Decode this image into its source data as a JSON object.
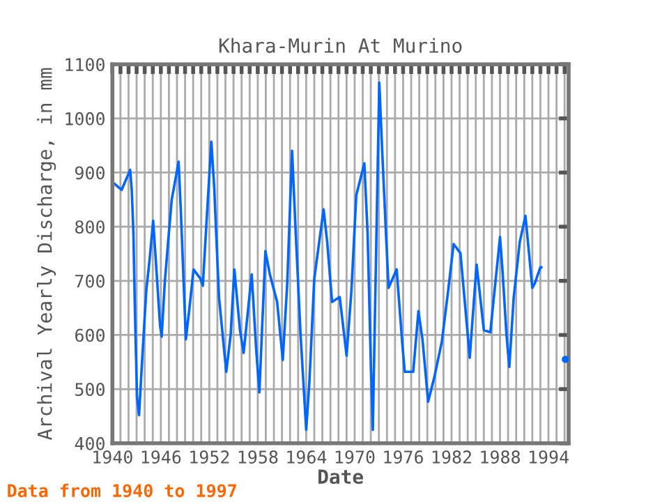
{
  "chart_data": {
    "type": "line",
    "title": "Khara-Murin At Murino",
    "xlabel": "Date",
    "ylabel": "Archival Yearly Discharge, in mm",
    "annotations": [
      "Data from 1940 to 1997"
    ],
    "series": [
      {
        "color": "#0066ff",
        "x": [
          1940.2,
          1941.15,
          1942.2,
          1942.4,
          1942.6,
          1942.8,
          1943.05,
          1943.3,
          1943.7,
          1944.2,
          1944.6,
          1945.05,
          1945.3,
          1945.9,
          1946.1,
          1946.5,
          1946.95,
          1947.35,
          1948.2,
          1948.5,
          1949.1,
          1949.5,
          1950.05,
          1950.9,
          1951.2,
          1951.65,
          1952.25,
          1952.6,
          1953.2,
          1954.1,
          1954.65,
          1955.1,
          1955.8,
          1956.25,
          1957.25,
          1957.8,
          1958.2,
          1958.95,
          1959.5,
          1960.4,
          1961.1,
          1961.65,
          1962.25,
          1962.7,
          1963.3,
          1964.0,
          1964.4,
          1965.0,
          1966.15,
          1966.6,
          1967.2,
          1968.15,
          1969.0,
          1969.6,
          1970.2,
          1971.2,
          1971.6,
          1972.0,
          1972.25,
          1972.65,
          1973.05,
          1973.5,
          1973.9,
          1974.2,
          1975.2,
          1975.9,
          1976.2,
          1977.25,
          1977.9,
          1978.4,
          1979.1,
          1979.9,
          1980.8,
          1981.55,
          1982.25,
          1983.1,
          1983.95,
          1984.25,
          1985.1,
          1986.0,
          1986.8,
          1988.0,
          1988.3,
          1988.8,
          1989.15,
          1989.7,
          1990.45,
          1991.15,
          1992.0,
          1992.3,
          1993.0,
          1993.15
        ],
        "values": [
          880,
          868,
          905,
          867,
          789,
          639,
          485,
          452,
          558,
          683,
          738,
          811,
          755,
          618,
          597,
          700,
          781,
          850,
          920,
          820,
          592,
          644,
          721,
          704,
          691,
          807,
          957,
          875,
          670,
          532,
          601,
          721,
          609,
          567,
          712,
          575,
          494,
          755,
          712,
          661,
          554,
          695,
          940,
          789,
          601,
          425,
          515,
          704,
          832,
          772,
          661,
          670,
          562,
          682,
          858,
          917,
          789,
          549,
          425,
          747,
          1066,
          910,
          781,
          687,
          721,
          584,
          532,
          532,
          644,
          592,
          477,
          524,
          588,
          678,
          768,
          751,
          609,
          558,
          730,
          609,
          605,
          781,
          721,
          601,
          541,
          670,
          772,
          820,
          687,
          695,
          725,
          725
        ]
      },
      {
        "type": "scatter",
        "marker": "circle",
        "color": "#0066ff",
        "x": [
          1996.1
        ],
        "values": [
          555
        ]
      }
    ],
    "xlim": [
      1940,
      1996.5
    ],
    "xticks": [
      1940,
      {
        "value": 1941,
        "label": null
      },
      {
        "value": 1942,
        "label": null
      },
      {
        "value": 1943,
        "label": null
      },
      {
        "value": 1944,
        "label": null
      },
      {
        "value": 1945,
        "label": null
      },
      1946,
      {
        "value": 1947,
        "label": null
      },
      {
        "value": 1948,
        "label": null
      },
      {
        "value": 1949,
        "label": null
      },
      {
        "value": 1950,
        "label": null
      },
      {
        "value": 1951,
        "label": null
      },
      1952,
      {
        "value": 1953,
        "label": null
      },
      {
        "value": 1954,
        "label": null
      },
      {
        "value": 1955,
        "label": null
      },
      {
        "value": 1956,
        "label": null
      },
      {
        "value": 1957,
        "label": null
      },
      1958,
      {
        "value": 1959,
        "label": null
      },
      {
        "value": 1960,
        "label": null
      },
      {
        "value": 1961,
        "label": null
      },
      {
        "value": 1962,
        "label": null
      },
      {
        "value": 1963,
        "label": null
      },
      1964,
      {
        "value": 1965,
        "label": null
      },
      {
        "value": 1966,
        "label": null
      },
      {
        "value": 1967,
        "label": null
      },
      {
        "value": 1968,
        "label": null
      },
      {
        "value": 1969,
        "label": null
      },
      1970,
      {
        "value": 1971,
        "label": null
      },
      {
        "value": 1972,
        "label": null
      },
      {
        "value": 1973,
        "label": null
      },
      {
        "value": 1974,
        "label": null
      },
      {
        "value": 1975,
        "label": null
      },
      1976,
      {
        "value": 1977,
        "label": null
      },
      {
        "value": 1978,
        "label": null
      },
      {
        "value": 1979,
        "label": null
      },
      {
        "value": 1980,
        "label": null
      },
      {
        "value": 1981,
        "label": null
      },
      1982,
      {
        "value": 1983,
        "label": null
      },
      {
        "value": 1984,
        "label": null
      },
      {
        "value": 1985,
        "label": null
      },
      {
        "value": 1986,
        "label": null
      },
      {
        "value": 1987,
        "label": null
      },
      1988,
      {
        "value": 1989,
        "label": null
      },
      {
        "value": 1990,
        "label": null
      },
      {
        "value": 1991,
        "label": null
      },
      {
        "value": 1992,
        "label": null
      },
      {
        "value": 1993,
        "label": null
      },
      1994,
      {
        "value": 1995,
        "label": null
      },
      {
        "value": 1996,
        "label": null
      }
    ],
    "ylim": [
      400,
      1100
    ],
    "yticks": [
      400,
      500,
      600,
      700,
      800,
      900,
      1000,
      1100
    ],
    "grid": true,
    "marker": "none",
    "line_style": "solid",
    "legend": false
  }
}
